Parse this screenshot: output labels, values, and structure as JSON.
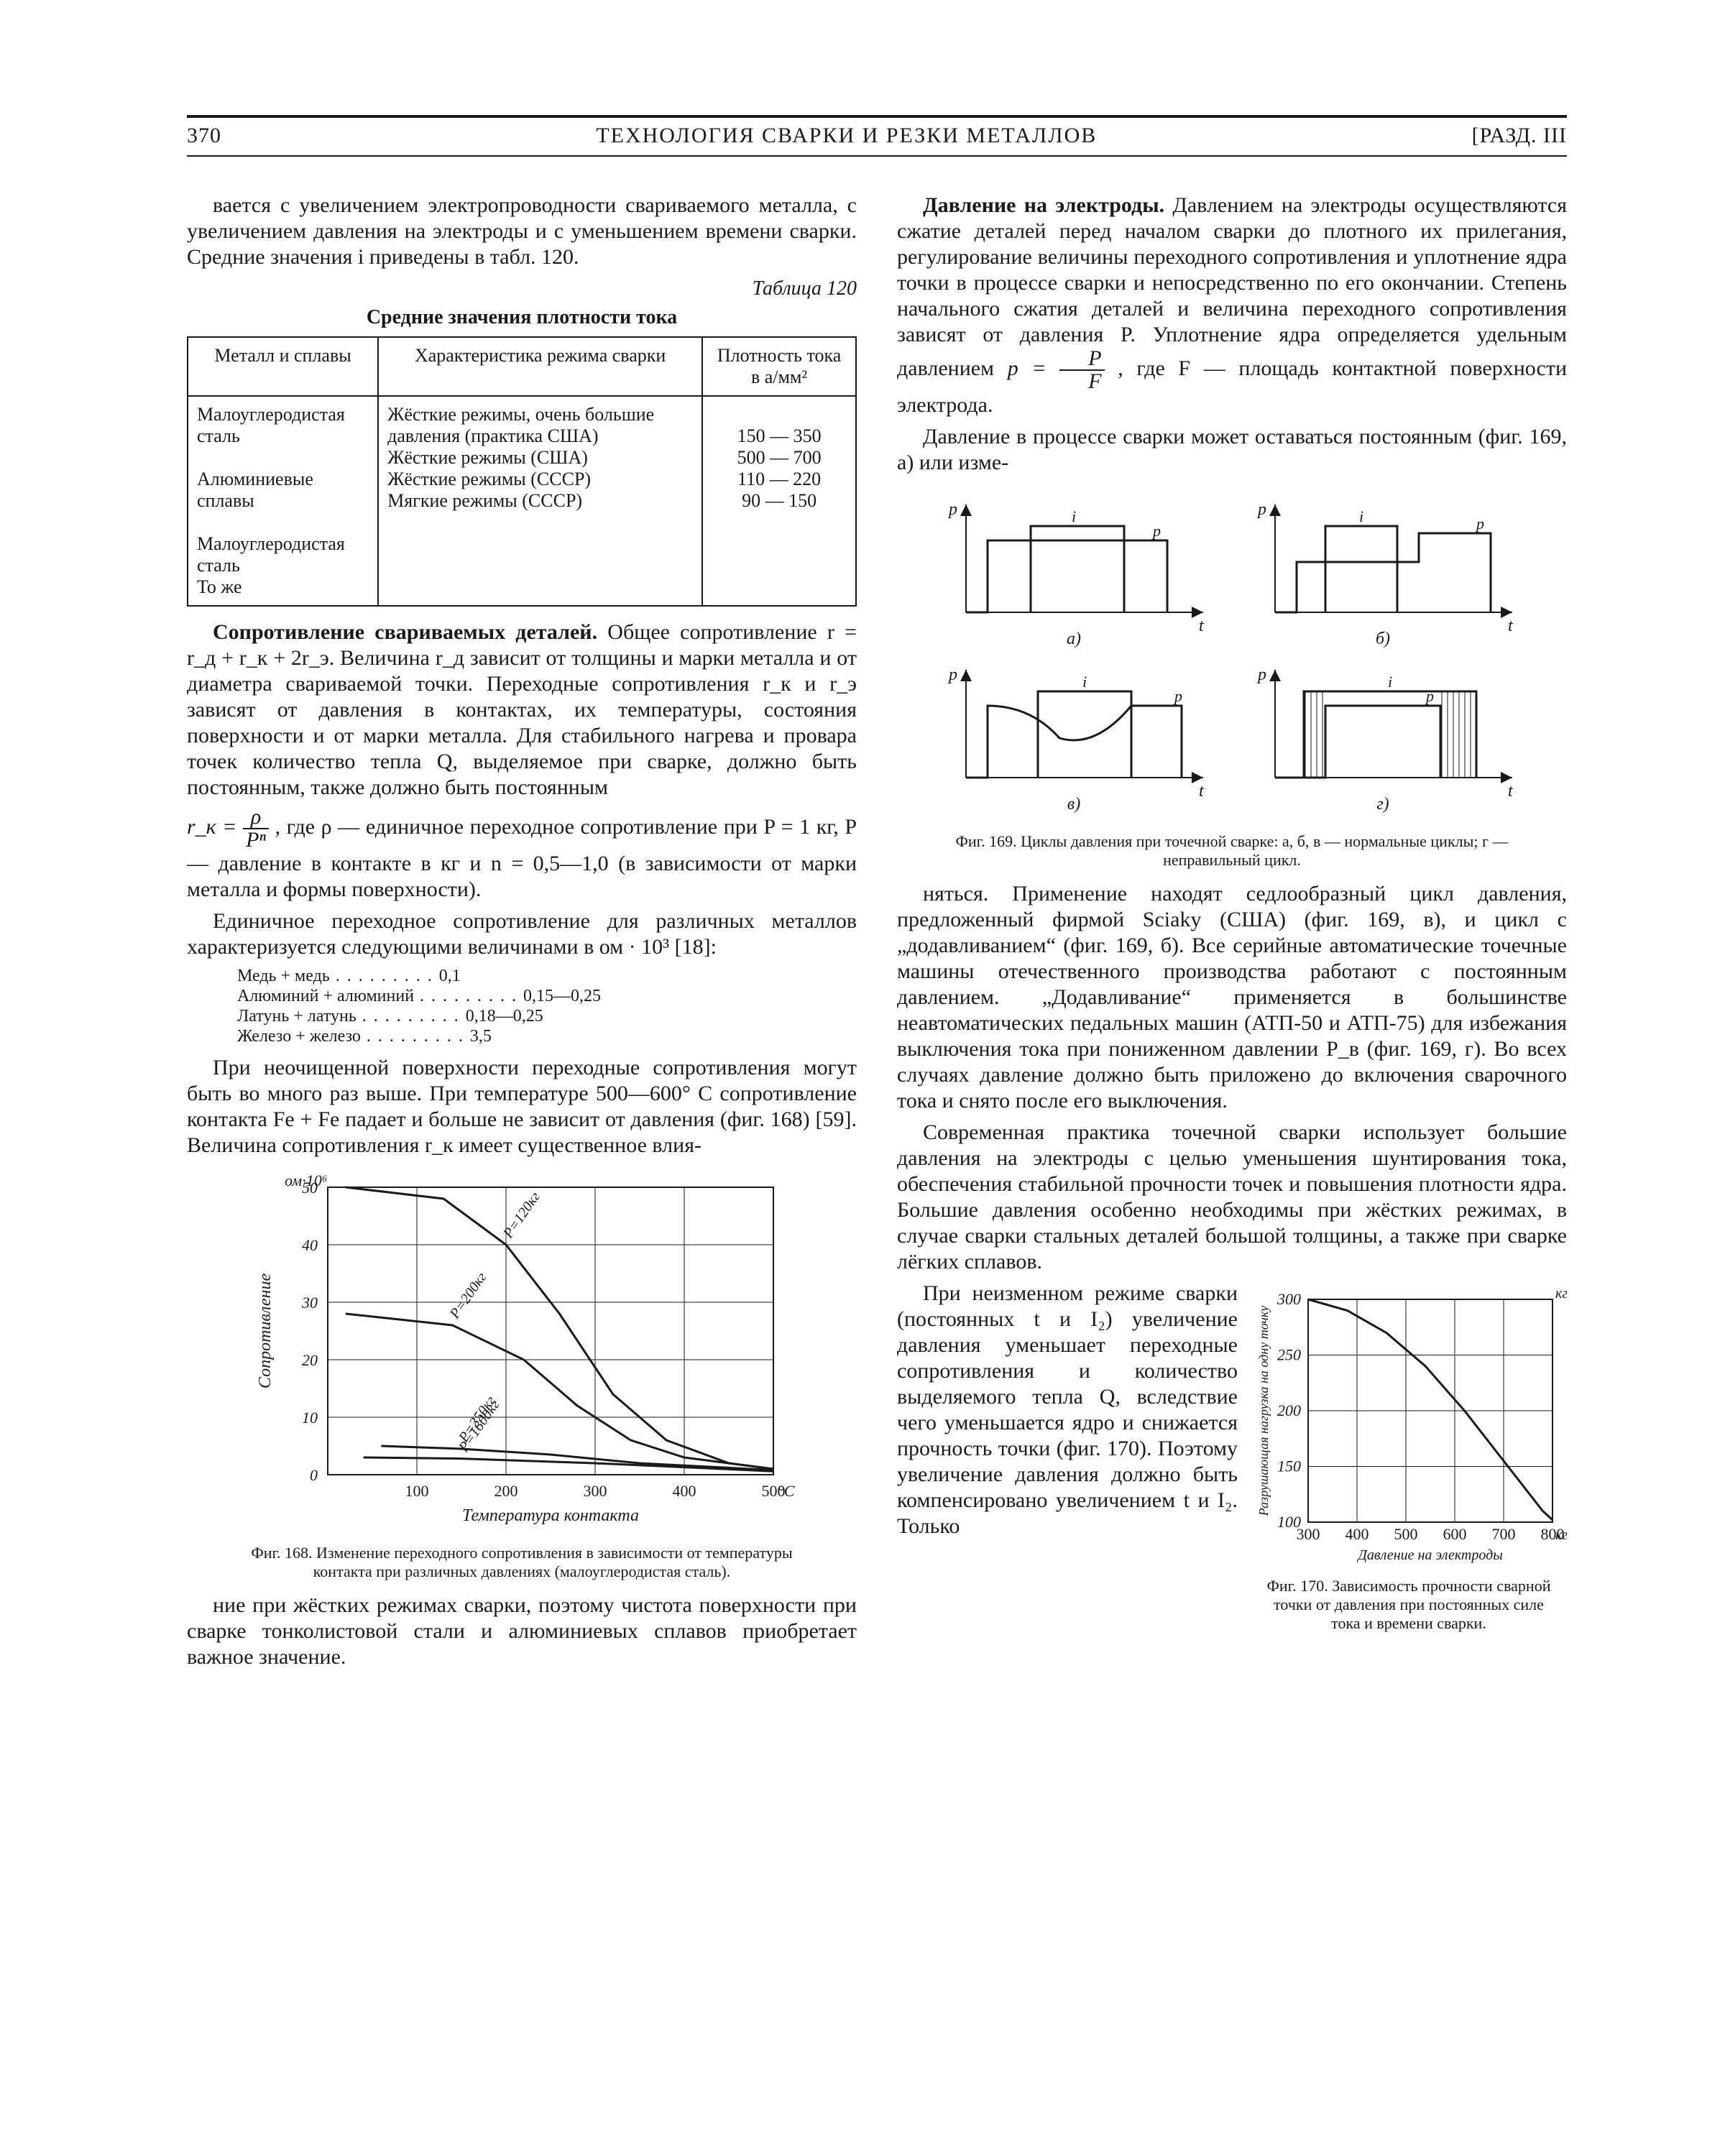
{
  "page": {
    "number": "370",
    "running_title": "ТЕХНОЛОГИЯ СВАРКИ И РЕЗКИ МЕТАЛЛОВ",
    "section": "[РАЗД. III"
  },
  "colors": {
    "text": "#1a1a1a",
    "background": "#ffffff",
    "rule": "#1a1a1a",
    "chart_line": "#1a1a1a",
    "chart_grid": "#1a1a1a"
  },
  "typography": {
    "body_pt": 30,
    "line_height": 36,
    "caption_pt": 22,
    "table_pt": 26,
    "family": "Times New Roman"
  },
  "body": {
    "p1": "вается с увеличением электропроводности свариваемого металла, с увеличением давления на электроды и с уменьшением времени сварки. Средние значения i приведены в табл. 120.",
    "table120": {
      "label": "Таблица 120",
      "caption": "Средние значения плотности тока",
      "cols": [
        "Металл и сплавы",
        "Характеристика режима сварки",
        "Плотность тока в а/мм²"
      ],
      "rows": [
        [
          "Малоуглеродистая сталь",
          "Жёсткие режимы, очень большие давления (практика США)",
          "150 — 350"
        ],
        [
          "Алюминиевые сплавы",
          "Жёсткие режимы (США)",
          "500 — 700"
        ],
        [
          "Малоуглеродистая сталь",
          "Жёсткие режимы (СССР)",
          "110 — 220"
        ],
        [
          "То же",
          "Мягкие режимы (СССР)",
          "90 — 150"
        ]
      ]
    },
    "h1": "Сопротивление свариваемых деталей.",
    "p2": "Общее сопротивление  r = r_д + r_к + 2r_э. Величина r_д зависит от толщины и марки металла и от диаметра свариваемой точки. Переходные сопротивления r_к и r_э зависят от давления в контактах, их температуры, состояния поверхности и от марки металла. Для стабильного нагрева и провара точек количество тепла Q, выделяемое при сварке, должно быть постоянным, также должно быть постоянным",
    "eq1_pre": "r_к = ",
    "eq1_num": "ρ",
    "eq1_den": "Pⁿ",
    "eq1_post": ", где ρ — единичное переходное сопротивление при P = 1 кг, P — давление в контакте в кг и n = 0,5—1,0 (в зависимости от марки металла и формы поверхности).",
    "p3": "Единичное переходное сопротивление для различных металлов характеризуется следующими величинами в ом · 10³ [18]:",
    "list": [
      {
        "l": "Медь + медь",
        "v": "0,1"
      },
      {
        "l": "Алюминий + алюминий",
        "v": "0,15—0,25"
      },
      {
        "l": "Латунь + латунь",
        "v": "0,18—0,25"
      },
      {
        "l": "Железо + железо",
        "v": "3,5"
      }
    ],
    "p4": "При неочищенной поверхности переходные сопротивления могут быть во много раз выше. При температуре 500—600° С сопротивление контакта Fe + Fe падает и больше не зависит от давления (фиг. 168) [59]. Величина сопротивления r_к имеет существенное влия-",
    "p5": "ние при жёстких режимах сварки, поэтому чистота поверхности при сварке тонколистовой стали и алюминиевых сплавов приобретает важное значение.",
    "h2": "Давление на электроды.",
    "p6": "Давлением на электроды осуществляются сжатие деталей перед началом сварки до плотного их прилегания, регулирование величины переходного сопротивления и уплотнение ядра точки в процессе сварки и непосредственно по его окончании. Степень начального сжатия деталей и величина переходного сопротивления зависят от давления P. Уплотнение ядра определяется удельным давлением ",
    "eq2_lead": "p = ",
    "eq2_num": "P",
    "eq2_den": "F",
    "eq2_post": ", где F — площадь контактной поверхности электрода.",
    "p7": "Давление в процессе сварки может оставаться постоянным (фиг. 169, а) или изме-",
    "fig169_caption": "Фиг. 169. Циклы давления при точечной сварке: а, б, в — нормальные циклы; г — неправильный цикл.",
    "p8": "няться. Применение находят седлообразный цикл давления, предложенный фирмой Sciaky (США) (фиг. 169, в), и цикл с „додавливанием“ (фиг. 169, б). Все серийные автоматические точечные машины отечественного производства работают с постоянным давлением. „Додавливание“ применяется в большинстве неавтоматических педальных машин (АТП-50 и АТП-75) для избежания выключения тока при пониженном давлении P_в (фиг. 169, г). Во всех случаях давление должно быть приложено до включения сварочного тока и снято после его выключения.",
    "p9": "Современная практика точечной сварки использует большие давления на электроды с целью уменьшения шунтирования тока, обеспечения стабильной прочности точек и повышения плотности ядра. Большие давления особенно необходимы при жёстких режимах, в случае сварки стальных деталей большой толщины, а также при сварке лёгких сплавов.",
    "p10": "При неизменном режиме сварки (постоянных t и I₂) увеличение давления уменьшает переходные сопротивления и количество выделяемого тепла Q, вследствие чего уменьшается ядро и снижается прочность точки (фиг. 170). Поэтому увеличение давления должно быть компенсировано увеличением t и I₂. Только"
  },
  "fig168": {
    "type": "line",
    "title": "Фиг. 168. Изменение переходного сопротивления в зависимости от температуры контакта при различных давлениях (малоуглеродистая сталь).",
    "xlabel": "Температура контакта",
    "x_unit": "°С",
    "ylabel": "Сопротивление",
    "y_unit": "ом·10⁶",
    "xlim": [
      0,
      500
    ],
    "ylim": [
      0,
      50
    ],
    "xtick_step": 100,
    "ytick_step": 10,
    "x_ticks": [
      100,
      200,
      300,
      400,
      500
    ],
    "y_ticks": [
      0,
      10,
      20,
      30,
      40,
      50
    ],
    "series": [
      {
        "label": "P=120кг",
        "points": [
          [
            20,
            50
          ],
          [
            130,
            48
          ],
          [
            200,
            40
          ],
          [
            260,
            28
          ],
          [
            320,
            14
          ],
          [
            380,
            6
          ],
          [
            450,
            2
          ],
          [
            500,
            1
          ]
        ]
      },
      {
        "label": "P=200кг",
        "points": [
          [
            20,
            28
          ],
          [
            140,
            26
          ],
          [
            220,
            20
          ],
          [
            280,
            12
          ],
          [
            340,
            6
          ],
          [
            400,
            3
          ],
          [
            500,
            1
          ]
        ]
      },
      {
        "label": "P=350кг",
        "points": [
          [
            60,
            5
          ],
          [
            150,
            4.5
          ],
          [
            250,
            3.5
          ],
          [
            350,
            2
          ],
          [
            500,
            0.8
          ]
        ]
      },
      {
        "label": "P=1600кг",
        "points": [
          [
            40,
            3
          ],
          [
            150,
            2.8
          ],
          [
            300,
            2
          ],
          [
            500,
            0.6
          ]
        ]
      }
    ],
    "line_color": "#1a1a1a",
    "line_width": 3,
    "grid_color": "#1a1a1a",
    "background_color": "#ffffff",
    "label_fontsize": 22
  },
  "fig169": {
    "type": "timing-diagrams",
    "panels": [
      "а",
      "б",
      "в",
      "г"
    ],
    "axes": {
      "y_left_label": "p",
      "y_right_in": "i",
      "x_label": "t"
    },
    "shapes": {
      "а": {
        "p": "flat_high",
        "i": "single_pulse_inside"
      },
      "б": {
        "p": "flat_then_step_up",
        "i": "single_pulse_early"
      },
      "в": {
        "p": "saddle",
        "i": "single_pulse_center"
      },
      "г": {
        "p": "flat_high",
        "i": "clipped_pulse"
      }
    },
    "line_color": "#1a1a1a",
    "line_width": 3,
    "background_color": "#ffffff"
  },
  "fig170": {
    "type": "line",
    "title": "Фиг. 170. Зависимость прочности сварной точки от давления при постоянных силе тока и времени сварки.",
    "xlabel": "Давление на электроды",
    "x_unit": "кг",
    "ylabel": "Разрушающая нагрузка на одну точку",
    "y_unit": "кг",
    "xlim": [
      300,
      800
    ],
    "ylim": [
      100,
      300
    ],
    "xtick_step": 100,
    "ytick_step": 50,
    "x_ticks": [
      300,
      400,
      500,
      600,
      700,
      800
    ],
    "y_ticks": [
      100,
      150,
      200,
      250,
      300
    ],
    "series": [
      {
        "label": "",
        "points": [
          [
            300,
            300
          ],
          [
            380,
            290
          ],
          [
            460,
            270
          ],
          [
            540,
            240
          ],
          [
            620,
            200
          ],
          [
            700,
            155
          ],
          [
            780,
            110
          ],
          [
            800,
            102
          ]
        ]
      }
    ],
    "line_color": "#1a1a1a",
    "line_width": 3,
    "grid_color": "#1a1a1a",
    "background_color": "#ffffff",
    "label_fontsize": 22
  }
}
